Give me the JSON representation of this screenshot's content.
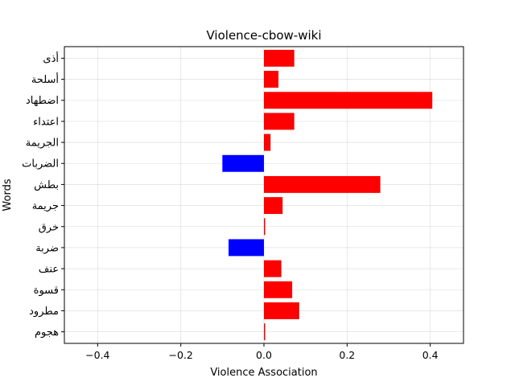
{
  "chart_data": {
    "type": "bar",
    "orientation": "horizontal",
    "title": "Violence-cbow-wiki",
    "xlabel": "Violence Association",
    "ylabel": "Words",
    "categories": [
      "أذى",
      "أسلحة",
      "اضطهاد",
      "اعتداء",
      "الجريمة",
      "الضربات",
      "بطش",
      "جريمة",
      "خرق",
      "ضربة",
      "عنف",
      "قسوة",
      "مطرود",
      "هجوم"
    ],
    "values": [
      0.073,
      0.035,
      0.405,
      0.073,
      0.016,
      -0.1,
      0.28,
      0.045,
      0.003,
      -0.085,
      0.042,
      0.068,
      0.085,
      0.003
    ],
    "xlim": [
      -0.48,
      0.48
    ],
    "xticks": [
      -0.4,
      -0.2,
      0.0,
      0.2,
      0.4
    ],
    "xtick_labels": [
      "−0.4",
      "−0.2",
      "0.0",
      "0.2",
      "0.4"
    ],
    "grid": true,
    "colors": {
      "positive": "#ff0000",
      "negative": "#0000ff"
    }
  }
}
